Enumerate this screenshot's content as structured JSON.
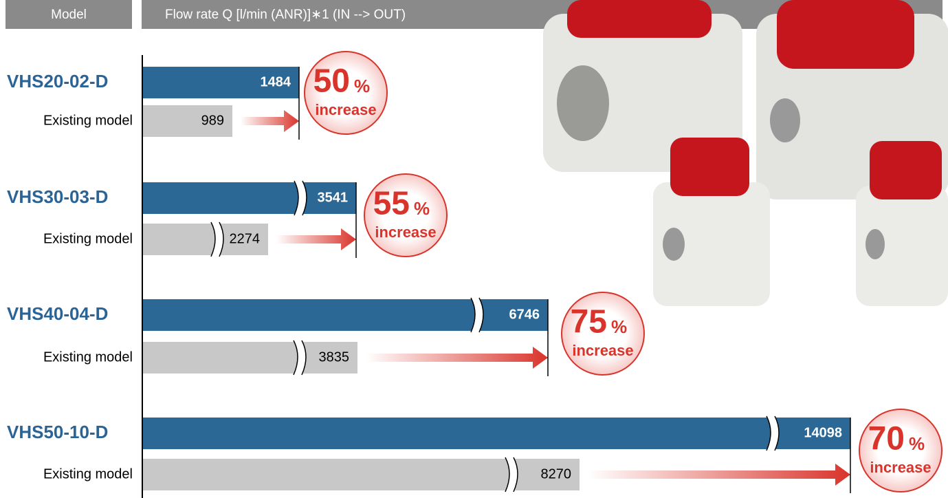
{
  "header": {
    "model": "Model",
    "flow_rate": "Flow rate Q [l/min (ANR)]∗1 (IN --> OUT)"
  },
  "rows": [
    {
      "model": "VHS20-02-D",
      "value": "1484",
      "existing_label": "Existing model",
      "existing_value": "989",
      "increase_value": "50",
      "percent": "%",
      "increase": "increase"
    },
    {
      "model": "VHS30-03-D",
      "value": "3541",
      "existing_label": "Existing model",
      "existing_value": "2274",
      "increase_value": "55",
      "percent": "%",
      "increase": "increase"
    },
    {
      "model": "VHS40-04-D",
      "value": "6746",
      "existing_label": "Existing model",
      "existing_value": "3835",
      "increase_value": "75",
      "percent": "%",
      "increase": "increase"
    },
    {
      "model": "VHS50-10-D",
      "value": "14098",
      "existing_label": "Existing model",
      "existing_value": "8270",
      "increase_value": "70",
      "percent": "%",
      "increase": "increase"
    }
  ]
}
